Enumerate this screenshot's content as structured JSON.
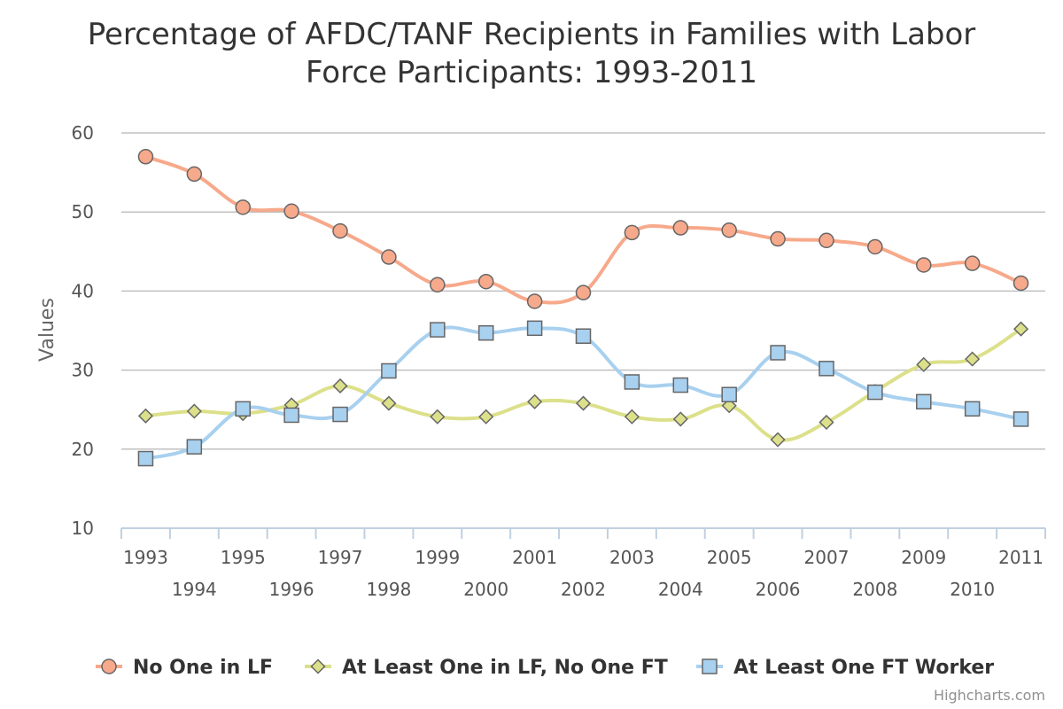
{
  "chart_data": {
    "type": "line",
    "title_lines": [
      "Percentage of AFDC/TANF Recipients in Families with Labor",
      "Force Participants: 1993-2011"
    ],
    "xlabel": "",
    "ylabel": "Values",
    "ylim": [
      10,
      60
    ],
    "yticks": [
      "10",
      "20",
      "30",
      "40",
      "50",
      "60"
    ],
    "categories": [
      "1993",
      "1994",
      "1995",
      "1996",
      "1997",
      "1998",
      "1999",
      "2000",
      "2001",
      "2002",
      "2003",
      "2004",
      "2005",
      "2006",
      "2007",
      "2008",
      "2009",
      "2010",
      "2011"
    ],
    "grid": true,
    "legend_position": "bottom",
    "series": [
      {
        "name": "No One in LF",
        "color": "#F7A98B",
        "marker": "circle",
        "values": [
          57.0,
          54.8,
          50.6,
          50.1,
          47.6,
          44.3,
          40.8,
          41.2,
          38.7,
          39.8,
          47.4,
          48.0,
          47.7,
          46.6,
          46.4,
          45.6,
          43.3,
          43.5,
          41.0
        ]
      },
      {
        "name": "At Least One in LF, No One FT",
        "color": "#DCE08A",
        "marker": "diamond",
        "values": [
          24.2,
          24.8,
          24.5,
          25.6,
          28.0,
          25.8,
          24.1,
          24.1,
          26.0,
          25.8,
          24.1,
          23.8,
          25.5,
          21.2,
          23.4,
          27.3,
          30.7,
          31.4,
          35.2
        ]
      },
      {
        "name": "At Least One FT Worker",
        "color": "#A8D0EF",
        "marker": "square",
        "values": [
          18.8,
          20.3,
          25.1,
          24.3,
          24.4,
          29.9,
          35.1,
          34.7,
          35.3,
          34.3,
          28.5,
          28.1,
          26.9,
          32.2,
          30.2,
          27.2,
          26.0,
          25.1,
          23.8
        ]
      }
    ]
  },
  "credit": "Highcharts.com"
}
